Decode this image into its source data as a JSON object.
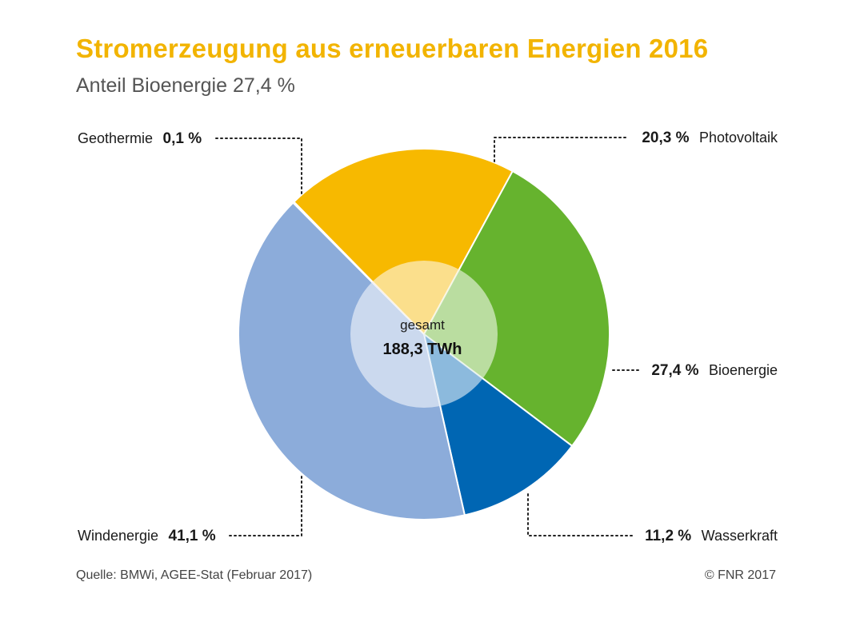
{
  "header": {
    "title": "Stromerzeugung aus erneuerbaren Energien 2016",
    "subtitle": "Anteil Bioenergie 27,4 %"
  },
  "footer": {
    "source": "Quelle: BMWi, AGEE-Stat (Februar 2017)",
    "copyright": "© FNR 2017"
  },
  "chart_data": {
    "type": "pie",
    "title": "Stromerzeugung aus erneuerbaren Energien 2016",
    "subtitle": "Anteil Bioenergie 27,4 %",
    "center_label": "gesamt",
    "center_value": "188,3 TWh",
    "slices": [
      {
        "name": "Photovoltaik",
        "value": 20.3,
        "label": "20,3 %",
        "color": "#f7b900"
      },
      {
        "name": "Bioenergie",
        "value": 27.4,
        "label": "27,4 %",
        "color": "#66b32e"
      },
      {
        "name": "Wasserkraft",
        "value": 11.2,
        "label": "11,2 %",
        "color": "#0066b3"
      },
      {
        "name": "Windenergie",
        "value": 41.1,
        "label": "41,1 %",
        "color": "#8cacda"
      },
      {
        "name": "Geothermie",
        "value": 0.1,
        "label": "0,1 %",
        "color": "#b5174b"
      }
    ]
  }
}
